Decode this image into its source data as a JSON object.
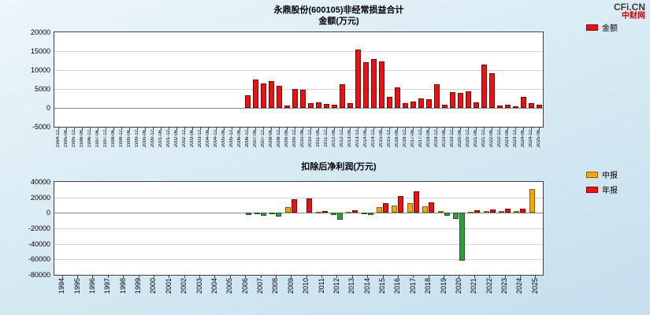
{
  "logo": {
    "text": "CFi.CN",
    "subtext": "中财网"
  },
  "chart_data": [
    {
      "type": "bar",
      "title": "永鼎股份(600105)非经常损益合计",
      "subtitle": "金额(万元)",
      "legend_position": "top-right",
      "grid": true,
      "ylim": [
        -5000,
        20000
      ],
      "yticks": [
        20000,
        15000,
        10000,
        5000,
        0,
        -5000
      ],
      "negative_color": "#2f9e3f",
      "negative_border": "#1a5c24",
      "categories": [
        "1994-12",
        "1995-06",
        "1995-12",
        "1996-06",
        "1996-12",
        "1997-06",
        "1997-12",
        "1998-06",
        "1998-12",
        "1999-06",
        "1999-12",
        "2000-06",
        "2000-12",
        "2001-06",
        "2001-12",
        "2002-06",
        "2002-12",
        "2003-06",
        "2003-12",
        "2004-06",
        "2004-12",
        "2005-06",
        "2005-12",
        "2006-06",
        "2006-12",
        "2007-06",
        "2007-12",
        "2008-06",
        "2008-12",
        "2009-06",
        "2009-12",
        "2010-06",
        "2010-12",
        "2011-06",
        "2011-12",
        "2012-06",
        "2012-12",
        "2013-06",
        "2013-12",
        "2014-06",
        "2014-12",
        "2015-06",
        "2015-12",
        "2016-06",
        "2016-12",
        "2017-06",
        "2017-12",
        "2018-06",
        "2018-12",
        "2019-06",
        "2019-12",
        "2020-06",
        "2020-12",
        "2021-06",
        "2021-12",
        "2022-06",
        "2022-12",
        "2023-06",
        "2023-12",
        "2024-06",
        "2024-12",
        "2025-06"
      ],
      "series": [
        {
          "name": "金额",
          "color": "#ee1111",
          "border": "#7d0000",
          "values": [
            0,
            0,
            0,
            0,
            0,
            0,
            0,
            0,
            0,
            0,
            0,
            0,
            0,
            0,
            0,
            0,
            0,
            0,
            0,
            0,
            0,
            0,
            0,
            0,
            3300,
            7500,
            6500,
            7100,
            5900,
            600,
            5100,
            4900,
            1200,
            1400,
            1000,
            800,
            6300,
            1200,
            15500,
            12000,
            13000,
            12400,
            3000,
            5500,
            1200,
            1600,
            2600,
            2200,
            6300,
            800,
            4100,
            3900,
            4300,
            1500,
            11400,
            9200,
            600,
            900,
            500,
            3000,
            1200,
            800
          ]
        }
      ]
    },
    {
      "type": "bar",
      "title": "扣除后净利润(万元)",
      "legend_position": "top-right",
      "grid": true,
      "ylim": [
        -80000,
        40000
      ],
      "yticks": [
        40000,
        20000,
        0,
        -20000,
        -40000,
        -60000,
        -80000
      ],
      "negative_color": "#2f9e3f",
      "negative_border": "#1a5c24",
      "categories": [
        "1994",
        "1995",
        "1996",
        "1997",
        "1998",
        "1999",
        "2000",
        "2001",
        "2002",
        "2003",
        "2004",
        "2005",
        "2006",
        "2007",
        "2008",
        "2009",
        "2010",
        "2011",
        "2012",
        "2013",
        "2014",
        "2015",
        "2016",
        "2017",
        "2018",
        "2019",
        "2020",
        "2021",
        "2022",
        "2023",
        "2024",
        "2025"
      ],
      "series": [
        {
          "name": "中报",
          "color": "#f7a800",
          "border": "#8a5e00",
          "values": [
            0,
            0,
            0,
            0,
            0,
            0,
            0,
            0,
            0,
            0,
            0,
            0,
            0,
            -1200,
            -2000,
            7200,
            0,
            1500,
            -2500,
            1200,
            -1500,
            7600,
            9800,
            12200,
            8400,
            2000,
            -8000,
            1500,
            2000,
            2400,
            2800,
            30500
          ]
        },
        {
          "name": "年报",
          "color": "#ee1111",
          "border": "#7d0000",
          "values": [
            0,
            0,
            0,
            0,
            0,
            0,
            0,
            0,
            0,
            0,
            0,
            0,
            -3200,
            -4200,
            -5200,
            17500,
            18200,
            2600,
            -8500,
            3200,
            -3200,
            12600,
            21800,
            27400,
            13600,
            -3500,
            -62000,
            3000,
            4200,
            5200,
            5600,
            0
          ]
        }
      ]
    }
  ]
}
